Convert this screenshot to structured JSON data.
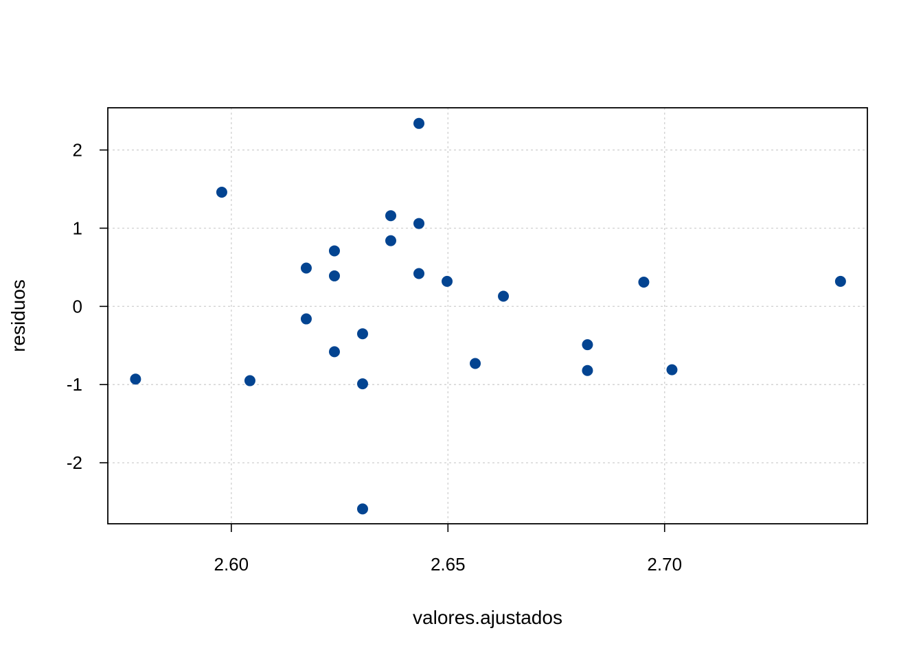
{
  "chart_data": {
    "type": "scatter",
    "title": "",
    "xlabel": "valores.ajustados",
    "ylabel": "residuos",
    "xlim": [
      2.5715,
      2.7468
    ],
    "ylim": [
      -2.78,
      2.54
    ],
    "x_ticks": [
      2.6,
      2.65,
      2.7
    ],
    "x_tick_labels": [
      "2.60",
      "2.65",
      "2.70"
    ],
    "y_ticks": [
      -2,
      -1,
      0,
      1,
      2
    ],
    "y_tick_labels": [
      "-2",
      "-1",
      "0",
      "1",
      "2"
    ],
    "grid": true,
    "point_color": "#034491",
    "points": [
      {
        "x": 2.5779,
        "y": -0.93
      },
      {
        "x": 2.5978,
        "y": 1.46
      },
      {
        "x": 2.6043,
        "y": -0.95
      },
      {
        "x": 2.6173,
        "y": 0.49
      },
      {
        "x": 2.6173,
        "y": -0.16
      },
      {
        "x": 2.6238,
        "y": 0.71
      },
      {
        "x": 2.6238,
        "y": 0.39
      },
      {
        "x": 2.6238,
        "y": -0.58
      },
      {
        "x": 2.6303,
        "y": -0.35
      },
      {
        "x": 2.6303,
        "y": -0.99
      },
      {
        "x": 2.6303,
        "y": -2.59
      },
      {
        "x": 2.6368,
        "y": 1.16
      },
      {
        "x": 2.6368,
        "y": 0.84
      },
      {
        "x": 2.6433,
        "y": 2.34
      },
      {
        "x": 2.6433,
        "y": 1.06
      },
      {
        "x": 2.6433,
        "y": 0.42
      },
      {
        "x": 2.6498,
        "y": 0.32
      },
      {
        "x": 2.6563,
        "y": -0.73
      },
      {
        "x": 2.6628,
        "y": 0.13
      },
      {
        "x": 2.6822,
        "y": -0.49
      },
      {
        "x": 2.6822,
        "y": -0.82
      },
      {
        "x": 2.6952,
        "y": 0.31
      },
      {
        "x": 2.7017,
        "y": -0.81
      },
      {
        "x": 2.7406,
        "y": 0.32
      }
    ]
  }
}
